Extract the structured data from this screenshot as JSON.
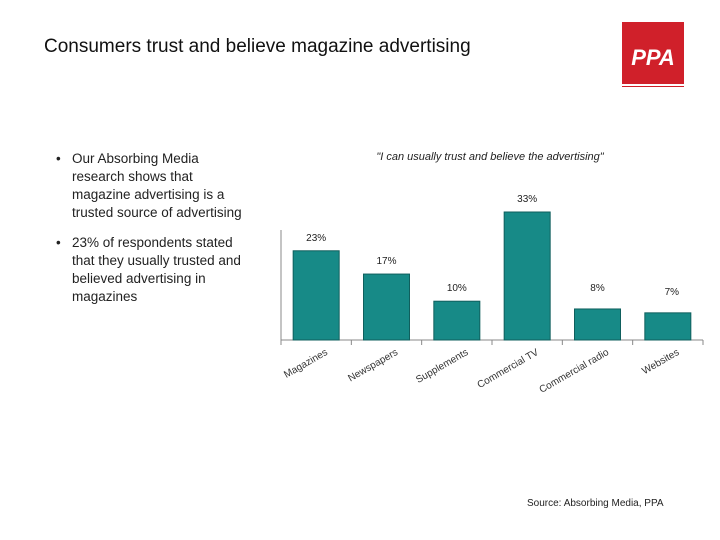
{
  "header": {
    "title": "Consumers trust and believe magazine advertising",
    "logo_text": "PPA",
    "logo_color": "#d0202a"
  },
  "bullets": [
    "Our Absorbing Media research shows that magazine advertising is a trusted source of advertising",
    "23% of respondents stated that they usually trusted and believed advertising in magazines"
  ],
  "source": "Source: Absorbing Media, PPA",
  "chart_data": {
    "type": "bar",
    "title": "\"I can usually trust and believe the advertising\"",
    "categories": [
      "Magazines",
      "Newspapers",
      "Supplements",
      "Commercial TV",
      "Commercial radio",
      "Websites"
    ],
    "values": [
      23,
      17,
      10,
      33,
      8,
      7
    ],
    "data_labels": [
      "23%",
      "17%",
      "10%",
      "33%",
      "8%",
      "7%"
    ],
    "bar_color": "#178a87",
    "ylim": [
      0,
      36
    ],
    "grid": false,
    "legend": "none"
  }
}
